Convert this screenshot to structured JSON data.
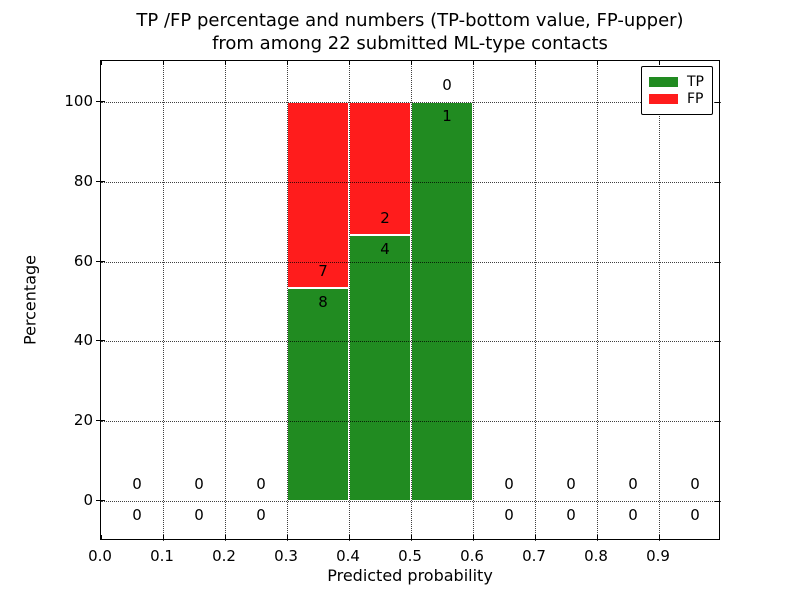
{
  "figure": {
    "title_line1": "TP /FP percentage and numbers (TP-bottom value, FP-upper)",
    "title_line2": "from among 22 submitted ML-type contacts",
    "xlabel": "Predicted probability",
    "ylabel": "Percentage"
  },
  "legend": {
    "position": "upper right",
    "items": [
      {
        "label": "TP",
        "color": "#218B21",
        "swatch": "tp-swatch"
      },
      {
        "label": "FP",
        "color": "#FF1C1C",
        "swatch": "fp-swatch"
      }
    ]
  },
  "chart_data": {
    "type": "bar",
    "stacked": true,
    "title": "TP /FP percentage and numbers (TP-bottom value, FP-upper) from among 22 submitted ML-type contacts",
    "xlabel": "Predicted probability",
    "ylabel": "Percentage",
    "total_submitted_contacts": 22,
    "xlim": [
      0.0,
      1.0
    ],
    "ylim": [
      -10,
      110.3
    ],
    "grid": "dotted",
    "grid_above_bars": true,
    "legend_position": "upper right",
    "bin_edges": [
      0.0,
      0.1,
      0.2,
      0.3,
      0.4,
      0.5,
      0.6,
      0.7,
      0.8,
      0.9,
      1.0
    ],
    "x_tick_values": [
      0.0,
      0.1,
      0.2,
      0.3,
      0.4,
      0.5,
      0.6,
      0.7,
      0.8,
      0.9
    ],
    "x_tick_labels": [
      "0.0",
      "0.1",
      "0.2",
      "0.3",
      "0.4",
      "0.5",
      "0.6",
      "0.7",
      "0.8",
      "0.9"
    ],
    "y_tick_values": [
      0,
      20,
      40,
      60,
      80,
      100
    ],
    "y_tick_labels": [
      "0",
      "20",
      "40",
      "60",
      "80",
      "100"
    ],
    "series": [
      {
        "name": "TP",
        "color": "#218B21",
        "counts": [
          0,
          0,
          0,
          8,
          4,
          1,
          0,
          0,
          0,
          0
        ],
        "percents": [
          0,
          0,
          0,
          53.33,
          66.67,
          100,
          0,
          0,
          0,
          0
        ],
        "label_position": "below boundary"
      },
      {
        "name": "FP",
        "color": "#FF1C1C",
        "counts": [
          0,
          0,
          0,
          7,
          2,
          0,
          0,
          0,
          0,
          0
        ],
        "percents": [
          0,
          0,
          0,
          46.67,
          33.33,
          0,
          0,
          0,
          0,
          0
        ],
        "label_position": "above boundary"
      }
    ]
  }
}
